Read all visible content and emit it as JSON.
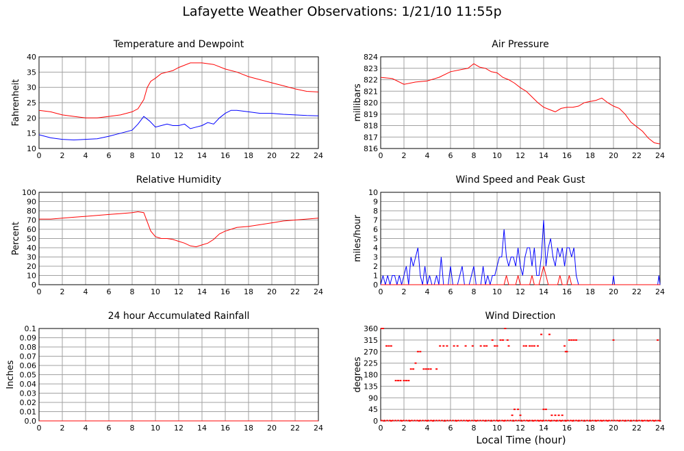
{
  "page": {
    "title": "Lafayette Weather Observations: 1/21/10 11:55p",
    "x_axis_label": "Local Time (hour)"
  },
  "chart_data": [
    {
      "type": "line",
      "title": "Temperature and Dewpoint",
      "ylabel": "Fahrenheit",
      "xlim": [
        0,
        24
      ],
      "ylim": [
        10,
        40
      ],
      "x_ticks": [
        0,
        2,
        4,
        6,
        8,
        10,
        12,
        14,
        16,
        18,
        20,
        22,
        24
      ],
      "y_ticks": [
        10,
        15,
        20,
        25,
        30,
        35,
        40
      ],
      "y_tick_labels": [
        "10",
        "15",
        "20",
        "25",
        "30",
        "35",
        "40"
      ],
      "grid": true,
      "series": [
        {
          "color": "#ff0000",
          "x": [
            0,
            1,
            2,
            3,
            4,
            5,
            6,
            7,
            8,
            8.5,
            9,
            9.3,
            9.6,
            10,
            10.5,
            11,
            11.5,
            12,
            13,
            14,
            15,
            16,
            17,
            18,
            19,
            20,
            21,
            22,
            23,
            24
          ],
          "y": [
            22.5,
            22,
            21,
            20.5,
            20,
            20,
            20.5,
            21,
            22,
            23,
            26,
            30,
            32,
            33,
            34.5,
            35,
            35.5,
            36.5,
            38,
            38,
            37.5,
            36,
            35,
            33.5,
            32.5,
            31.5,
            30.5,
            29.5,
            28.7,
            28.5
          ]
        },
        {
          "color": "#0000ff",
          "x": [
            0,
            1,
            2,
            3,
            4,
            5,
            6,
            7,
            8,
            8.5,
            9,
            9.5,
            10,
            10.5,
            11,
            11.5,
            12,
            12.5,
            13,
            13.5,
            14,
            14.5,
            15,
            15.5,
            16,
            16.5,
            17,
            18,
            19,
            20,
            21,
            22,
            23,
            24
          ],
          "y": [
            14.5,
            13.5,
            13,
            12.8,
            13,
            13.2,
            14,
            15,
            16,
            18,
            20.5,
            19,
            17,
            17.5,
            18,
            17.5,
            17.5,
            18,
            16.5,
            17,
            17.5,
            18.5,
            18,
            20,
            21.5,
            22.5,
            22.5,
            22,
            21.5,
            21.5,
            21.2,
            21,
            20.8,
            20.7
          ]
        }
      ]
    },
    {
      "type": "line",
      "title": "Air Pressure",
      "ylabel": "millibars",
      "xlim": [
        0,
        24
      ],
      "ylim": [
        816,
        824
      ],
      "x_ticks": [
        0,
        2,
        4,
        6,
        8,
        10,
        12,
        14,
        16,
        18,
        20,
        22,
        24
      ],
      "y_ticks": [
        816,
        817,
        818,
        819,
        820,
        821,
        822,
        823,
        824
      ],
      "y_tick_labels": [
        "816",
        "817",
        "818",
        "819",
        "820",
        "821",
        "822",
        "823",
        "824"
      ],
      "grid": true,
      "series": [
        {
          "color": "#ff0000",
          "x": [
            0,
            1,
            2,
            3,
            4,
            5,
            6,
            7,
            7.5,
            8,
            8.5,
            9,
            9.5,
            10,
            10.5,
            11,
            11.5,
            12,
            12.5,
            13,
            13.5,
            14,
            14.5,
            15,
            15.5,
            16,
            16.5,
            17,
            17.5,
            18,
            18.5,
            19,
            19.5,
            20,
            20.5,
            21,
            21.5,
            22,
            22.5,
            23,
            23.5,
            24
          ],
          "y": [
            822.2,
            822.1,
            821.6,
            821.8,
            821.9,
            822.2,
            822.7,
            822.9,
            823,
            823.4,
            823.1,
            823.0,
            822.7,
            822.6,
            822.2,
            822.0,
            821.7,
            821.3,
            821.0,
            820.5,
            820,
            819.6,
            819.4,
            819.2,
            819.5,
            819.6,
            819.6,
            819.7,
            820.0,
            820.1,
            820.2,
            820.4,
            820.0,
            819.7,
            819.5,
            819.0,
            818.3,
            817.9,
            817.5,
            816.9,
            816.5,
            816.4
          ]
        }
      ]
    },
    {
      "type": "line",
      "title": "Relative Humidity",
      "ylabel": "Percent",
      "xlim": [
        0,
        24
      ],
      "ylim": [
        0,
        100
      ],
      "x_ticks": [
        0,
        2,
        4,
        6,
        8,
        10,
        12,
        14,
        16,
        18,
        20,
        22,
        24
      ],
      "y_ticks": [
        0,
        10,
        20,
        30,
        40,
        50,
        60,
        70,
        80,
        90,
        100
      ],
      "y_tick_labels": [
        "0",
        "10",
        "20",
        "30",
        "40",
        "50",
        "60",
        "70",
        "80",
        "90",
        "100"
      ],
      "grid": true,
      "series": [
        {
          "color": "#ff0000",
          "x": [
            0,
            1,
            2,
            3,
            4,
            5,
            6,
            7,
            8,
            8.5,
            9,
            9.3,
            9.6,
            10,
            10.5,
            11,
            11.5,
            12,
            12.5,
            13,
            13.5,
            14,
            14.5,
            15,
            15.5,
            16,
            16.5,
            17,
            18,
            19,
            20,
            21,
            22,
            23,
            24
          ],
          "y": [
            71,
            71,
            72,
            73,
            74,
            75,
            76,
            77,
            78,
            79,
            78,
            68,
            58,
            52,
            50,
            50,
            49,
            47,
            45,
            42,
            41,
            43,
            45,
            49,
            55,
            58,
            60,
            62,
            63,
            65,
            67,
            69,
            70,
            71,
            72
          ]
        }
      ]
    },
    {
      "type": "line",
      "title": "Wind Speed and Peak Gust",
      "ylabel": "miles/hour",
      "xlim": [
        0,
        24
      ],
      "ylim": [
        0,
        10
      ],
      "x_ticks": [
        0,
        2,
        4,
        6,
        8,
        10,
        12,
        14,
        16,
        18,
        20,
        22,
        24
      ],
      "y_ticks": [
        0,
        1,
        2,
        3,
        4,
        5,
        6,
        7,
        8,
        9,
        10
      ],
      "y_tick_labels": [
        "0",
        "1",
        "2",
        "3",
        "4",
        "5",
        "6",
        "7",
        "8",
        "9",
        "10"
      ],
      "grid": true,
      "series": [
        {
          "color": "#0000ff",
          "x": [
            0,
            0.2,
            0.4,
            0.6,
            0.8,
            1.0,
            1.2,
            1.4,
            1.6,
            1.8,
            2.0,
            2.2,
            2.4,
            2.6,
            2.8,
            3.0,
            3.2,
            3.4,
            3.6,
            3.8,
            4.0,
            4.2,
            4.4,
            4.6,
            4.8,
            5.0,
            5.2,
            5.4,
            5.6,
            5.8,
            6.0,
            6.2,
            6.4,
            6.6,
            6.8,
            7.0,
            7.2,
            7.4,
            7.6,
            7.8,
            8.0,
            8.2,
            8.4,
            8.6,
            8.8,
            9.0,
            9.2,
            9.4,
            9.6,
            9.8,
            10.0,
            10.2,
            10.4,
            10.6,
            10.8,
            11.0,
            11.2,
            11.4,
            11.6,
            11.8,
            12.0,
            12.2,
            12.4,
            12.6,
            12.8,
            13.0,
            13.2,
            13.4,
            13.6,
            13.8,
            14.0,
            14.2,
            14.4,
            14.6,
            14.8,
            15.0,
            15.2,
            15.4,
            15.6,
            15.8,
            16.0,
            16.2,
            16.4,
            16.6,
            16.8,
            17.0,
            18,
            19,
            19.9,
            20.0,
            20.1,
            21,
            22,
            23,
            23.8,
            23.9,
            24.0
          ],
          "y": [
            0,
            1,
            0,
            1,
            0,
            1,
            1,
            0,
            1,
            0,
            1,
            2,
            0,
            3,
            2,
            3,
            4,
            1,
            0,
            2,
            0,
            1,
            0,
            0,
            1,
            0,
            3,
            0,
            0,
            0,
            2,
            0,
            0,
            0,
            1,
            2,
            0,
            0,
            0,
            1,
            2,
            0,
            0,
            0,
            2,
            0,
            1,
            0,
            1,
            1,
            2,
            3,
            3,
            6,
            3,
            2,
            3,
            3,
            2,
            4,
            2,
            1,
            3,
            4,
            4,
            2,
            4,
            1,
            1,
            3,
            7,
            2,
            4,
            5,
            3,
            2,
            4,
            3,
            4,
            2,
            4,
            4,
            3,
            4,
            1,
            0,
            0,
            0,
            0,
            1,
            0,
            0,
            0,
            0,
            0,
            1,
            0
          ]
        },
        {
          "color": "#ff0000",
          "x": [
            0,
            10.6,
            10.8,
            11.0,
            11.6,
            11.8,
            12.0,
            12.8,
            13.0,
            13.2,
            13.6,
            13.8,
            14.0,
            14.2,
            14.4,
            15.2,
            15.4,
            15.6,
            16.0,
            16.2,
            16.4,
            17,
            24
          ],
          "y": [
            0,
            0,
            1,
            0,
            0,
            1,
            0,
            0,
            1,
            0,
            0,
            1,
            2,
            1,
            0,
            0,
            1,
            0,
            0,
            1,
            0,
            0,
            0
          ]
        }
      ]
    },
    {
      "type": "line",
      "title": "24 hour Accumulated Rainfall",
      "ylabel": "Inches",
      "xlim": [
        0,
        24
      ],
      "ylim": [
        0,
        0.1
      ],
      "x_ticks": [
        0,
        2,
        4,
        6,
        8,
        10,
        12,
        14,
        16,
        18,
        20,
        22,
        24
      ],
      "y_ticks": [
        0,
        0.01,
        0.02,
        0.03,
        0.04,
        0.05,
        0.06,
        0.07,
        0.08,
        0.09,
        0.1
      ],
      "y_tick_labels": [
        "0.0",
        "0.01",
        "0.02",
        "0.03",
        "0.04",
        "0.05",
        "0.06",
        "0.07",
        "0.08",
        "0.09",
        "0.1"
      ],
      "grid": true,
      "series": [
        {
          "color": "#ff0000",
          "x": [
            0,
            24
          ],
          "y": [
            0,
            0
          ]
        }
      ]
    },
    {
      "type": "scatter",
      "title": "Wind Direction",
      "ylabel": "degrees",
      "xlim": [
        0,
        24
      ],
      "ylim": [
        0,
        360
      ],
      "x_ticks": [
        0,
        2,
        4,
        6,
        8,
        10,
        12,
        14,
        16,
        18,
        20,
        22,
        24
      ],
      "y_ticks": [
        0,
        45,
        90,
        135,
        180,
        225,
        270,
        315,
        360
      ],
      "y_tick_labels": [
        "0",
        "45",
        "90",
        "135",
        "180",
        "225",
        "270",
        "315",
        "360"
      ],
      "grid": true,
      "series": [
        {
          "color": "#ff0000",
          "x": [
            0.1,
            0.2,
            0.5,
            0.7,
            0.9,
            1.3,
            1.5,
            1.7,
            2.0,
            2.2,
            2.4,
            2.6,
            2.8,
            3.0,
            3.2,
            3.4,
            3.7,
            3.9,
            4.1,
            4.3,
            4.8,
            5.1,
            5.4,
            5.7,
            6.3,
            6.6,
            7.3,
            7.9,
            8.6,
            8.9,
            9.1,
            9.6,
            9.8,
            10.0,
            10.3,
            10.5,
            10.7,
            10.9,
            11.0,
            11.3,
            11.5,
            11.8,
            12.0,
            12.3,
            12.5,
            12.8,
            13.0,
            13.2,
            13.5,
            13.8,
            14.0,
            14.2,
            14.5,
            14.7,
            15.0,
            15.3,
            15.6,
            15.8,
            15.9,
            16.0,
            16.2,
            16.4,
            16.6,
            16.8,
            20.0,
            23.8,
            0.3,
            0.9,
            1.8,
            2.5,
            3.3,
            4.0,
            4.5,
            5.5,
            6.5,
            7.5,
            8.2,
            9.0,
            9.5,
            10.1,
            10.6,
            11.4,
            12.1,
            12.7,
            13.1,
            13.6,
            13.9,
            14.6,
            15.1,
            15.5,
            15.9,
            16.5,
            17,
            17.5,
            18,
            18.5,
            19,
            19.5,
            20.5,
            21,
            21.5,
            22,
            22.5,
            23,
            23.5,
            24
          ],
          "y": [
            360,
            360,
            292,
            292,
            292,
            157,
            157,
            157,
            157,
            157,
            157,
            202,
            202,
            225,
            270,
            270,
            202,
            202,
            202,
            202,
            202,
            292,
            292,
            292,
            292,
            292,
            292,
            292,
            292,
            292,
            292,
            315,
            292,
            292,
            315,
            315,
            360,
            315,
            292,
            22,
            45,
            45,
            22,
            292,
            292,
            292,
            292,
            292,
            292,
            337,
            45,
            45,
            337,
            22,
            22,
            22,
            22,
            292,
            270,
            270,
            315,
            315,
            315,
            315,
            315,
            315,
            0,
            0,
            0,
            0,
            0,
            0,
            0,
            0,
            0,
            0,
            0,
            0,
            0,
            0,
            0,
            0,
            0,
            0,
            0,
            0,
            0,
            0,
            0,
            0,
            0,
            0,
            0,
            0,
            0,
            0,
            0,
            0,
            0,
            0,
            0,
            0,
            0,
            0,
            0,
            0
          ]
        }
      ]
    }
  ]
}
